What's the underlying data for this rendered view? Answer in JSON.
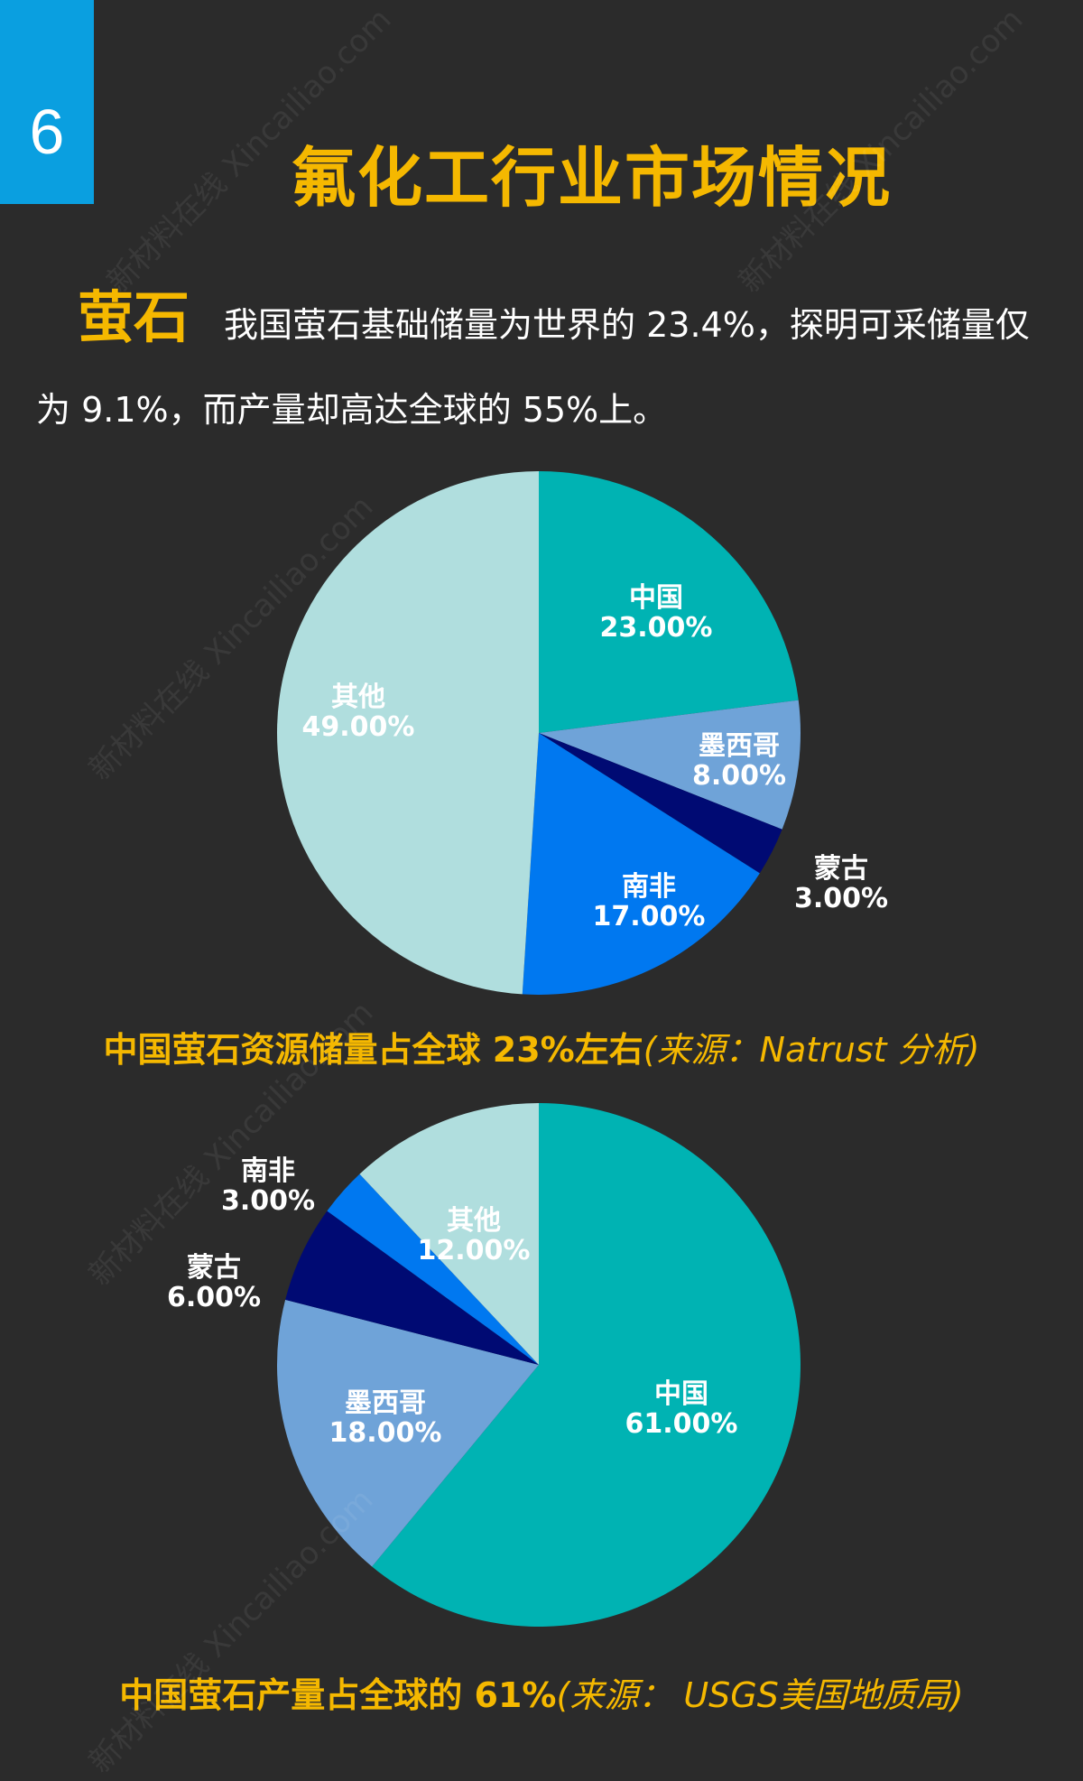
{
  "page": {
    "number": "6",
    "title": "氟化工行业市场情况",
    "intro_keyword": "萤石",
    "intro_text": "我国萤石基础储量为世界的 23.4%，探明可采储量仅为 9.1%，而产量却高达全球的 55%上。",
    "watermark": "新材料在线 Xincailiao.com"
  },
  "captions": [
    {
      "main": "中国萤石资源储量占全球 23%左右",
      "source": "(来源：Natrust 分析)"
    },
    {
      "main": "中国萤石产量占全球的 61%",
      "source": "(来源： USGS美国地质局)"
    }
  ],
  "colors": {
    "china": "#00b3b3",
    "mexico": "#6fa3d8",
    "mongolia": "#000a73",
    "south_africa": "#0078f0",
    "other": "#b0dede"
  },
  "chart_data": [
    {
      "type": "pie",
      "title": "",
      "slices": [
        {
          "label": "中国",
          "value": 23.0,
          "display": "23.00%",
          "color": "#00b3b3"
        },
        {
          "label": "墨西哥",
          "value": 8.0,
          "display": "8.00%",
          "color": "#6fa3d8"
        },
        {
          "label": "蒙古",
          "value": 3.0,
          "display": "3.00%",
          "color": "#000a73"
        },
        {
          "label": "南非",
          "value": 17.0,
          "display": "17.00%",
          "color": "#0078f0"
        },
        {
          "label": "其他",
          "value": 49.0,
          "display": "49.00%",
          "color": "#b0dede"
        }
      ]
    },
    {
      "type": "pie",
      "title": "",
      "slices": [
        {
          "label": "中国",
          "value": 61.0,
          "display": "61.00%",
          "color": "#00b3b3"
        },
        {
          "label": "墨西哥",
          "value": 18.0,
          "display": "18.00%",
          "color": "#6fa3d8"
        },
        {
          "label": "蒙古",
          "value": 6.0,
          "display": "6.00%",
          "color": "#000a73"
        },
        {
          "label": "南非",
          "value": 3.0,
          "display": "3.00%",
          "color": "#0078f0"
        },
        {
          "label": "其他",
          "value": 12.0,
          "display": "12.00%",
          "color": "#b0dede"
        }
      ]
    }
  ]
}
